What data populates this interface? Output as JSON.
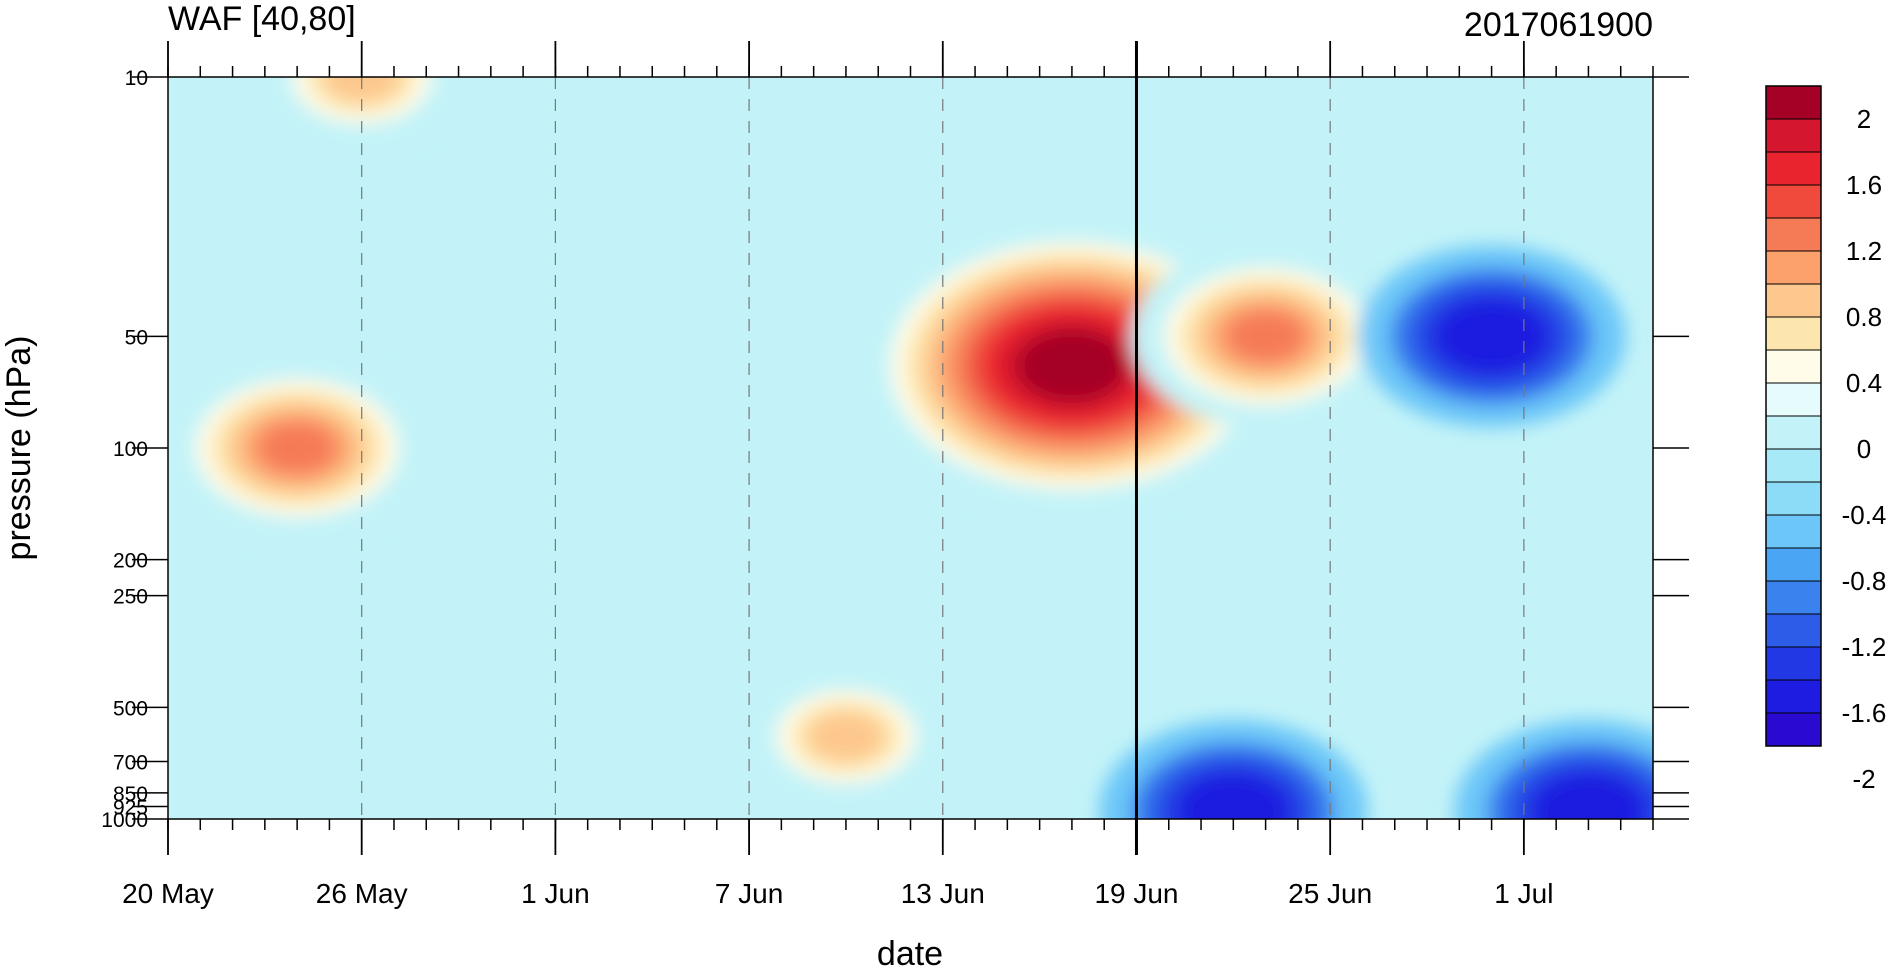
{
  "chart_data": {
    "type": "heatmap",
    "title": "WAF [40,80]",
    "subtitle": "2017061900",
    "xlabel": "date",
    "ylabel": "pressure (hPa)",
    "x_ticks": [
      "20 May",
      "26 May",
      "1 Jun",
      "7 Jun",
      "13 Jun",
      "19 Jun",
      "25 Jun",
      "1 Jul"
    ],
    "x_range": [
      "2017-05-20",
      "2017-07-05"
    ],
    "y_ticks": [
      10,
      50,
      100,
      200,
      250,
      500,
      700,
      850,
      925,
      1000
    ],
    "y_tick_labels": [
      "10",
      "50",
      "100",
      "200",
      "250",
      "500",
      "700",
      "850",
      "925",
      "1000"
    ],
    "y_range": [
      1000,
      10
    ],
    "y_scale": "log",
    "marker_date": "2017-06-19",
    "colorbar": {
      "labels": [
        "2",
        "1.6",
        "1.2",
        "0.8",
        "0.4",
        "0",
        "-0.4",
        "-0.8",
        "-1.2",
        "-1.6",
        "-2"
      ],
      "colors": [
        "#a50026",
        "#d4162e",
        "#e9242e",
        "#f04a3c",
        "#f57a56",
        "#fca16c",
        "#fdc88e",
        "#fde6ad",
        "#fffce9",
        "#e6fbfb",
        "#c3f3f8",
        "#a8e9f8",
        "#8cdcf8",
        "#6cc7f8",
        "#4aa6f4",
        "#3a82ee",
        "#2c5ce8",
        "#2238e4",
        "#1d1ce0",
        "#2a0ad0"
      ]
    },
    "features": [
      {
        "date": "2017-06-17",
        "pressure": 60,
        "value": 2.4
      },
      {
        "date": "2017-06-23",
        "pressure": 50,
        "value": 1.4
      },
      {
        "date": "2017-05-24",
        "pressure": 100,
        "value": 1.3
      },
      {
        "date": "2017-05-26",
        "pressure": 10,
        "value": 1.0
      },
      {
        "date": "2017-06-10",
        "pressure": 600,
        "value": 1.0
      },
      {
        "date": "2017-06-30",
        "pressure": 50,
        "value": -1.4
      },
      {
        "date": "2017-07-03",
        "pressure": 950,
        "value": -1.4
      },
      {
        "date": "2017-06-22",
        "pressure": 950,
        "value": -1.3
      }
    ]
  }
}
